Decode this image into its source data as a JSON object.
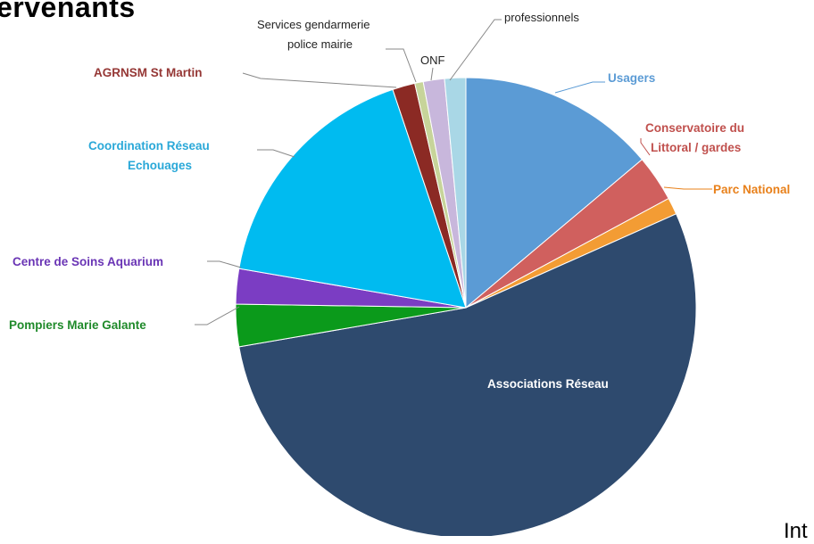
{
  "page": {
    "title": "ervenants",
    "corner_text": "Int"
  },
  "chart_data": {
    "type": "pie",
    "title": "",
    "start_angle_deg": 0,
    "direction": "clockwise",
    "slices": [
      {
        "label": "Usagers",
        "value": 14,
        "color": "#5b9bd5",
        "label_color": "#5b9bd5"
      },
      {
        "label": "Conservatoire du Littoral / gardes",
        "value": 3.3,
        "color": "#d0605e",
        "label_color": "#c0504d"
      },
      {
        "label": "Parc National",
        "value": 1.2,
        "color": "#f39c34",
        "label_color": "#e8801a"
      },
      {
        "label": "Associations Réseau",
        "value": 54.5,
        "color": "#2e4a6e",
        "label_color": "#ffffff"
      },
      {
        "label": "Pompiers Marie Galante",
        "value": 3.0,
        "color": "#0b9a1b",
        "label_color": "#1f8a2a"
      },
      {
        "label": "Centre de Soins Aquarium",
        "value": 2.5,
        "color": "#7b3dc3",
        "label_color": "#6a35b5"
      },
      {
        "label": "Coordination Réseau Echouages",
        "value": 17.3,
        "color": "#00bbf0",
        "label_color": "#2aa8d8"
      },
      {
        "label": "AGRNSM St Martin",
        "value": 1.6,
        "color": "#8b2a24",
        "label_color": "#953735"
      },
      {
        "label": "Services gendarmerie police mairie",
        "value": 0.6,
        "color": "#c7d49a",
        "label_color": "#222222"
      },
      {
        "label": "ONF",
        "value": 1.5,
        "color": "#c8b7dc",
        "label_color": "#222222"
      },
      {
        "label": "professionnels",
        "value": 1.5,
        "color": "#a9d7e6",
        "label_color": "#222222"
      }
    ]
  }
}
